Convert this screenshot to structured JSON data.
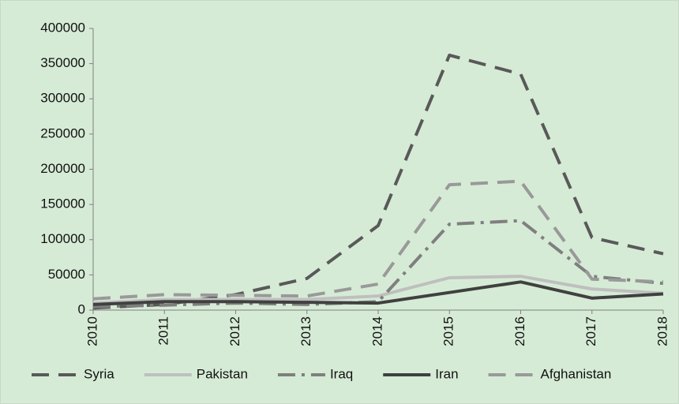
{
  "chart_data": {
    "type": "line",
    "categories": [
      "2010",
      "2011",
      "2012",
      "2013",
      "2014",
      "2015",
      "2016",
      "2017",
      "2018"
    ],
    "series": [
      {
        "name": "Syria",
        "color": "#595959",
        "dash": "dash",
        "values": [
          3000,
          8000,
          22000,
          45000,
          120000,
          362000,
          335000,
          103000,
          80000
        ]
      },
      {
        "name": "Pakistan",
        "color": "#bfbfbf",
        "dash": "solid",
        "values": [
          10000,
          15000,
          15000,
          15000,
          20000,
          46000,
          48000,
          30000,
          24000
        ]
      },
      {
        "name": "Iraq",
        "color": "#7f7f7f",
        "dash": "dashdot",
        "values": [
          5000,
          7000,
          10000,
          8000,
          12000,
          122000,
          127000,
          48000,
          38000
        ]
      },
      {
        "name": "Iran",
        "color": "#404040",
        "dash": "solid",
        "values": [
          8000,
          12000,
          12000,
          11000,
          10000,
          25000,
          40000,
          17000,
          23000
        ]
      },
      {
        "name": "Afghanistan",
        "color": "#999999",
        "dash": "dash",
        "values": [
          16000,
          22000,
          21000,
          20000,
          37000,
          178000,
          183000,
          44000,
          40000
        ]
      }
    ],
    "ylim": [
      0,
      400000
    ],
    "yticks": [
      0,
      50000,
      100000,
      150000,
      200000,
      250000,
      300000,
      350000,
      400000
    ],
    "grid": false,
    "legend": "bottom"
  }
}
